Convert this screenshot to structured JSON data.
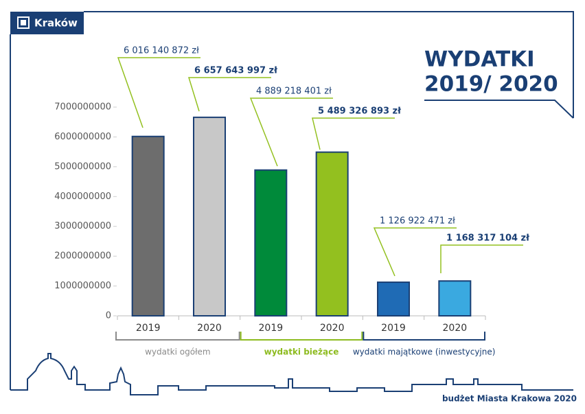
{
  "logo": "Kraków",
  "footer": "budżet Miasta Krakowa 2020",
  "chart_data": {
    "type": "bar",
    "title": [
      "WYDATKI",
      "2019/ 2020"
    ],
    "categories": [
      "2019",
      "2020",
      "2019",
      "2020",
      "2019",
      "2020"
    ],
    "values": [
      6016140872,
      6657643997,
      4889218401,
      5489326893,
      1126922471,
      1168317104
    ],
    "value_labels": [
      "6 016 140 872 zł",
      "6 657 643 997 zł",
      "4 889 218 401 zł",
      "5 489 326 893 zł",
      "1 126 922 471 zł",
      "1 168 317 104 zł"
    ],
    "colors": [
      "#6d6d6d",
      "#c8c8c8",
      "#008a3a",
      "#93c01f",
      "#1f6bb5",
      "#3aa9e0"
    ],
    "groups": [
      {
        "name": "wydatki ogółem",
        "color": "#8a8a8a"
      },
      {
        "name": "wydatki bieżące",
        "color": "#8dbb1f"
      },
      {
        "name": "wydatki majątkowe (inwestycyjne)",
        "color": "#1a3f74"
      }
    ],
    "ylim": [
      0,
      7000000000
    ],
    "yticks": [
      0,
      1000000000,
      2000000000,
      3000000000,
      4000000000,
      5000000000,
      6000000000,
      7000000000
    ]
  }
}
